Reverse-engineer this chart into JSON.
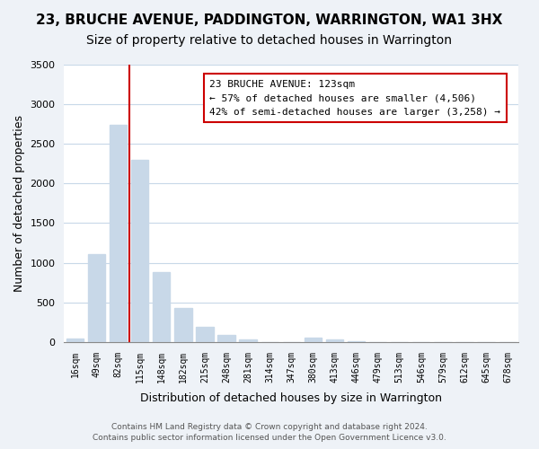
{
  "title": "23, BRUCHE AVENUE, PADDINGTON, WARRINGTON, WA1 3HX",
  "subtitle": "Size of property relative to detached houses in Warrington",
  "xlabel": "Distribution of detached houses by size in Warrington",
  "ylabel": "Number of detached properties",
  "categories": [
    "16sqm",
    "49sqm",
    "82sqm",
    "115sqm",
    "148sqm",
    "182sqm",
    "215sqm",
    "248sqm",
    "281sqm",
    "314sqm",
    "347sqm",
    "380sqm",
    "413sqm",
    "446sqm",
    "479sqm",
    "513sqm",
    "546sqm",
    "579sqm",
    "612sqm",
    "645sqm",
    "678sqm"
  ],
  "values": [
    40,
    1110,
    2740,
    2300,
    880,
    430,
    190,
    95,
    30,
    0,
    0,
    50,
    30,
    10,
    0,
    0,
    0,
    0,
    0,
    0,
    0
  ],
  "bar_color": "#c8d8e8",
  "vline_color": "#cc0000",
  "annotation_title": "23 BRUCHE AVENUE: 123sqm",
  "annotation_line1": "← 57% of detached houses are smaller (4,506)",
  "annotation_line2": "42% of semi-detached houses are larger (3,258) →",
  "annotation_box_color": "#ffffff",
  "annotation_box_edgecolor": "#cc0000",
  "ylim": [
    0,
    3500
  ],
  "yticks": [
    0,
    500,
    1000,
    1500,
    2000,
    2500,
    3000,
    3500
  ],
  "footer1": "Contains HM Land Registry data © Crown copyright and database right 2024.",
  "footer2": "Contains public sector information licensed under the Open Government Licence v3.0.",
  "bg_color": "#eef2f7",
  "plot_bg_color": "#ffffff",
  "grid_color": "#c8d8e8",
  "title_fontsize": 11,
  "subtitle_fontsize": 10
}
